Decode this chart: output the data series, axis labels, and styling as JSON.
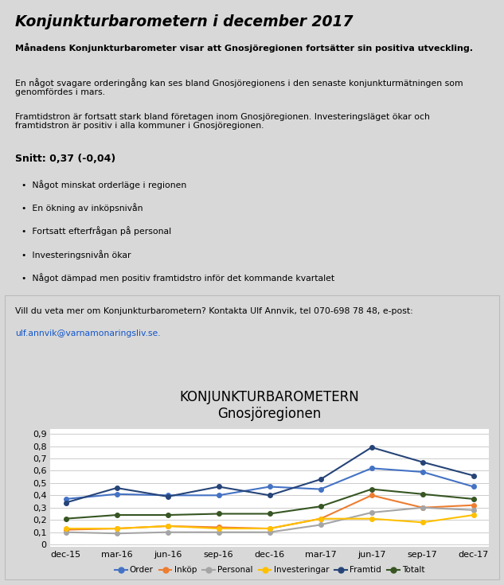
{
  "title_main": "KONJUNKTURBAROMETERN",
  "title_sub": "Gnosjöregionen",
  "x_labels": [
    "dec-15",
    "mar-16",
    "jun-16",
    "sep-16",
    "dec-16",
    "mar-17",
    "jun-17",
    "sep-17",
    "dec-17"
  ],
  "series": {
    "Order": {
      "color": "#4472C4",
      "values": [
        0.37,
        0.41,
        0.4,
        0.4,
        0.47,
        0.45,
        0.62,
        0.59,
        0.47
      ]
    },
    "Inköp": {
      "color": "#ED7D31",
      "values": [
        0.12,
        0.13,
        0.15,
        0.14,
        0.13,
        0.21,
        0.4,
        0.3,
        0.32
      ]
    },
    "Personal": {
      "color": "#A5A5A5",
      "values": [
        0.1,
        0.09,
        0.1,
        0.1,
        0.1,
        0.16,
        0.26,
        0.3,
        0.28
      ]
    },
    "Investeringar": {
      "color": "#FFC000",
      "values": [
        0.13,
        0.13,
        0.15,
        0.13,
        0.13,
        0.21,
        0.21,
        0.18,
        0.24
      ]
    },
    "Framtid": {
      "color": "#264478",
      "values": [
        0.34,
        0.46,
        0.39,
        0.47,
        0.4,
        0.53,
        0.79,
        0.67,
        0.56
      ]
    },
    "Totalt": {
      "color": "#375623",
      "values": [
        0.21,
        0.24,
        0.24,
        0.25,
        0.25,
        0.31,
        0.45,
        0.41,
        0.37
      ]
    }
  },
  "yticks": [
    0,
    0.1,
    0.2,
    0.3,
    0.4,
    0.5,
    0.6,
    0.7,
    0.8,
    0.9
  ],
  "chart_bg": "#FFFFFF",
  "page_bg": "#D8D8D8",
  "header_title": "Konjunkturbarometern i december 2017",
  "header_bold": "Månadens Konjunkturbarometer visar att Gnosjöregionen fortsätter sin positiva utveckling.",
  "header_para1": "En något svagare orderingång kan ses bland Gnosjöregionens i den senaste konjunkturmätningen som\ngenomfördes i mars.",
  "header_para2": "Framtidstron är fortsatt stark bland företagen inom Gnosjöregionen. Investeringsläget ökar och\nframtidstron är positiv i alla kommuner i Gnosjöregionen.",
  "snitt": "Snitt: 0,37 (-0,04)",
  "bullets": [
    "Något minskat orderläge i regionen",
    "En ökning av inköpsnivån",
    "Fortsatt efterfrågan på personal",
    "Investeringsnivån ökar",
    "Något dämpad men positiv framtidstro inför det kommande kvartalet"
  ],
  "contact": "Vill du veta mer om Konjunkturbarometern? Kontakta Ulf Annvik, tel 070-698 78 48, e-post:",
  "email": "ulf.annvik@varnamonaringsliv.se.",
  "series_order": [
    "Order",
    "Inköp",
    "Personal",
    "Investeringar",
    "Framtid",
    "Totalt"
  ]
}
